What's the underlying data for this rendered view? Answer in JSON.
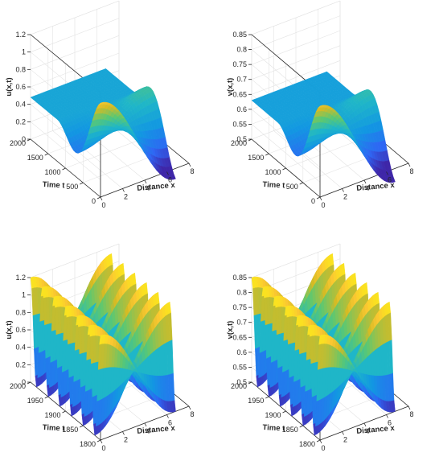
{
  "colors": {
    "surface_low": "#3e26a8",
    "surface_mid": "#1fb6c8",
    "surface_high": "#f9fb0e"
  },
  "chart_data": [
    {
      "type": "surface3d",
      "id": "panel-a",
      "zlabel": "u(x,t)",
      "xlabel": "Distance x",
      "ylabel": "Time t",
      "xlim": [
        0,
        8
      ],
      "ylim": [
        0,
        2000
      ],
      "zlim": [
        0,
        1.2
      ],
      "xticks": [
        "0",
        "2",
        "4",
        "6",
        "8"
      ],
      "yticks": [
        "0",
        "500",
        "1000",
        "1500",
        "2000"
      ],
      "zticks": [
        "0",
        "0.2",
        "0.4",
        "0.6",
        "0.8",
        "1",
        "1.2"
      ],
      "surface": {
        "pattern": "transient",
        "x_max": 6.8,
        "t_max": 2000,
        "steady": 0.48,
        "peak": 1.2,
        "trough": 0.0,
        "decay_end": 1200
      }
    },
    {
      "type": "surface3d",
      "id": "panel-b",
      "zlabel": "v(x,t)",
      "xlabel": "Distance x",
      "ylabel": "Time t",
      "xlim": [
        0,
        8
      ],
      "ylim": [
        0,
        2000
      ],
      "zlim": [
        0.5,
        0.85
      ],
      "xticks": [
        "0",
        "2",
        "4",
        "6",
        "8"
      ],
      "yticks": [
        "0",
        "500",
        "1000",
        "1500",
        "2000"
      ],
      "zticks": [
        "0.5",
        "0.55",
        "0.6",
        "0.65",
        "0.7",
        "0.75",
        "0.8",
        "0.85"
      ],
      "surface": {
        "pattern": "transient",
        "x_max": 6.8,
        "t_max": 2000,
        "steady": 0.63,
        "peak": 0.85,
        "trough": 0.5,
        "decay_end": 1200
      }
    },
    {
      "type": "surface3d",
      "id": "panel-c",
      "zlabel": "u(x,t)",
      "xlabel": "Distance x",
      "ylabel": "Time t",
      "xlim": [
        0,
        8
      ],
      "ylim": [
        1800,
        2000
      ],
      "zlim": [
        0,
        1.2
      ],
      "xticks": [
        "0",
        "2",
        "4",
        "6",
        "8"
      ],
      "yticks": [
        "1800",
        "1850",
        "1900",
        "1950",
        "2000"
      ],
      "zticks": [
        "0",
        "0.2",
        "0.4",
        "0.6",
        "0.8",
        "1",
        "1.2"
      ],
      "surface": {
        "pattern": "oscillating",
        "x_max": 6.8,
        "t_min": 1800,
        "t_max": 2000,
        "mean": 0.6,
        "amp": 0.6,
        "cycles": 6
      }
    },
    {
      "type": "surface3d",
      "id": "panel-d",
      "zlabel": "v(x,t)",
      "xlabel": "Distance x",
      "ylabel": "Time t",
      "xlim": [
        0,
        8
      ],
      "ylim": [
        1800,
        2000
      ],
      "zlim": [
        0.5,
        0.85
      ],
      "xticks": [
        "0",
        "2",
        "4",
        "6",
        "8"
      ],
      "yticks": [
        "1800",
        "1850",
        "1900",
        "1950",
        "2000"
      ],
      "zticks": [
        "0.5",
        "0.55",
        "0.6",
        "0.65",
        "0.7",
        "0.75",
        "0.8",
        "0.85"
      ],
      "surface": {
        "pattern": "oscillating",
        "x_max": 6.8,
        "t_min": 1800,
        "t_max": 2000,
        "mean": 0.675,
        "amp": 0.175,
        "cycles": 6
      }
    }
  ]
}
